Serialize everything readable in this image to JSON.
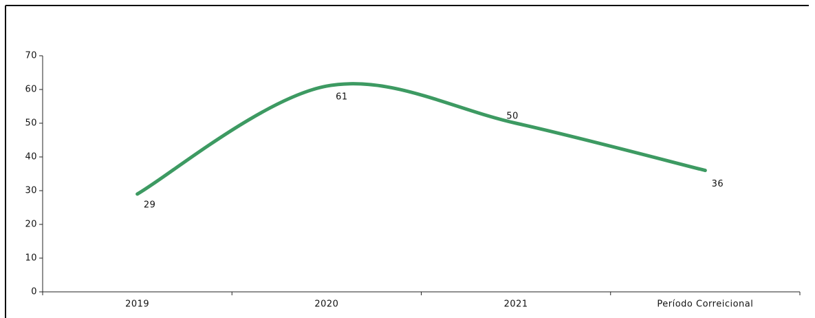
{
  "chart_data": {
    "type": "line",
    "categories": [
      "2019",
      "2020",
      "2021",
      "Período Correicional"
    ],
    "values": [
      29,
      61,
      50,
      36
    ],
    "color": "#3d9a62",
    "smooth": true,
    "ylim": [
      0,
      70
    ],
    "yticks": [
      0,
      10,
      20,
      30,
      40,
      50,
      60,
      70
    ]
  }
}
